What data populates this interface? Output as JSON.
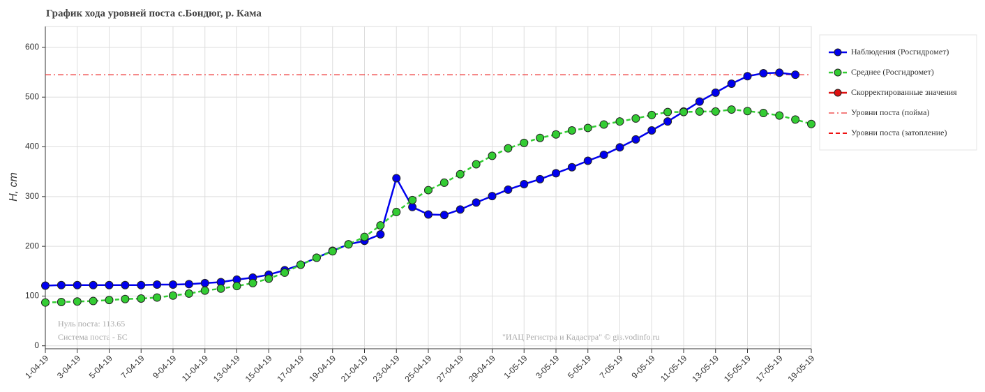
{
  "chart_data": {
    "type": "line",
    "title": "График хода уровней поста с.Бондюг, р. Кама",
    "y_label": "H, cm",
    "annotations": [
      "Нуль поста: 113.65",
      "Система поста - БС",
      "\"ИАЦ Регистра и Кадастра\" © gis.vodinfo.ru"
    ],
    "categories": [
      "1-04-19",
      null,
      "3-04-19",
      null,
      "5-04-19",
      null,
      "7-04-19",
      null,
      "9-04-19",
      null,
      "11-04-19",
      null,
      "13-04-19",
      null,
      "15-04-19",
      null,
      "17-04-19",
      null,
      "19-04-19",
      null,
      "21-04-19",
      null,
      "23-04-19",
      null,
      "25-04-19",
      null,
      "27-04-19",
      null,
      "29-04-19",
      null,
      "1-05-19",
      null,
      "3-05-19",
      null,
      "5-05-19",
      null,
      "7-05-19",
      null,
      "9-05-19",
      null,
      "11-05-19",
      null,
      "13-05-19",
      null,
      "15-05-19",
      null,
      "17-05-19",
      null,
      "19-05-19"
    ],
    "series": [
      {
        "name": "Наблюдения (Росгидромет)",
        "color": "#0000ee",
        "style": "solid",
        "values": [
          121,
          122,
          122,
          122,
          122,
          122,
          122,
          123,
          123,
          124,
          126,
          128,
          133,
          137,
          143,
          152,
          163,
          177,
          191,
          204,
          211,
          224,
          337,
          279,
          264,
          263,
          274,
          288,
          301,
          314,
          325,
          335,
          347,
          359,
          372,
          384,
          399,
          415,
          433,
          451,
          471,
          491,
          509,
          527,
          542,
          548,
          549,
          545,
          null
        ]
      },
      {
        "name": "Среднее (Росгидромет)",
        "color": "#33cc33",
        "style": "dashed",
        "values": [
          87,
          88,
          89,
          90,
          92,
          94,
          95,
          97,
          101,
          105,
          111,
          115,
          120,
          126,
          135,
          147,
          163,
          177,
          190,
          204,
          219,
          242,
          269,
          293,
          313,
          328,
          345,
          365,
          382,
          397,
          408,
          418,
          425,
          433,
          438,
          445,
          451,
          457,
          464,
          470,
          470,
          471,
          471,
          475,
          472,
          468,
          463,
          455,
          446
        ]
      },
      {
        "name": "Скорректированные значения",
        "color": "#dd1111",
        "style": "solid",
        "values": [
          null,
          null,
          null,
          null,
          null,
          null,
          null,
          null,
          null,
          null,
          null,
          null,
          null,
          null,
          null,
          null,
          null,
          null,
          null,
          null,
          null,
          null,
          null,
          null,
          null,
          null,
          null,
          null,
          null,
          null,
          null,
          null,
          null,
          null,
          null,
          null,
          null,
          null,
          null,
          null,
          null,
          null,
          null,
          null,
          null,
          null,
          null,
          null,
          null
        ]
      }
    ],
    "reference_lines": [
      {
        "name": "Уровни поста (пойма)",
        "value": 545,
        "color": "#ee3333",
        "style": "dashdot"
      },
      {
        "name": "Уровни поста (затопление)",
        "value": null,
        "color": "#ee1111",
        "style": "dashed"
      }
    ],
    "ylim": [
      -6,
      642
    ],
    "yticks": [
      0,
      100,
      200,
      300,
      400,
      500,
      600
    ],
    "grid": true
  }
}
